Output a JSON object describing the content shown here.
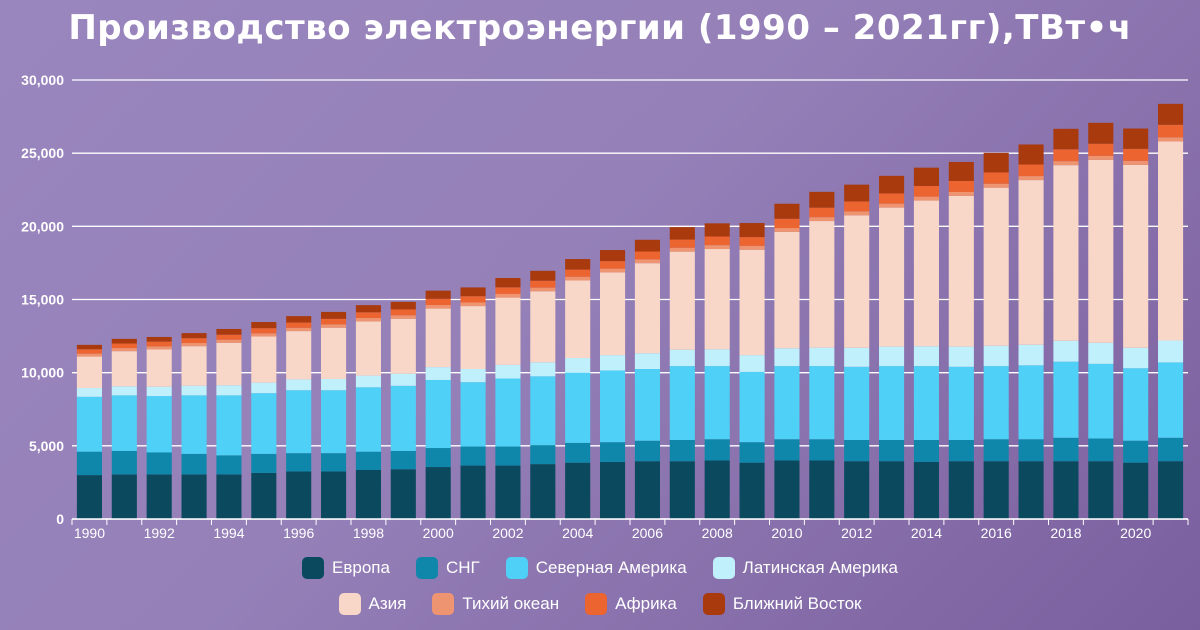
{
  "title": "Производство электроэнергии (1990 – 2021гг),ТВт•ч",
  "chart_data": {
    "type": "bar",
    "stacked": true,
    "title": "Производство электроэнергии (1990 – 2021гг),ТВт•ч",
    "xlabel": "",
    "ylabel": "",
    "ylim": [
      0,
      30000
    ],
    "yticks": [
      0,
      5000,
      10000,
      15000,
      20000,
      25000,
      30000
    ],
    "ytick_labels": [
      "0",
      "5,000",
      "10,000",
      "15,000",
      "20,000",
      "25,000",
      "30,000"
    ],
    "x_tick_labels": [
      "1990",
      "1992",
      "1994",
      "1996",
      "1998",
      "2000",
      "2002",
      "2004",
      "2006",
      "2008",
      "2010",
      "2012",
      "2014",
      "2016",
      "2018",
      "2020"
    ],
    "grid": true,
    "legend_position": "bottom",
    "categories": [
      "1990",
      "1991",
      "1992",
      "1993",
      "1994",
      "1995",
      "1996",
      "1997",
      "1998",
      "1999",
      "2000",
      "2001",
      "2002",
      "2003",
      "2004",
      "2005",
      "2006",
      "2007",
      "2008",
      "2009",
      "2010",
      "2011",
      "2012",
      "2013",
      "2014",
      "2015",
      "2016",
      "2017",
      "2018",
      "2019",
      "2020",
      "2021"
    ],
    "series": [
      {
        "name": "Европа",
        "color": "#0b4a5e",
        "values": [
          3000,
          3050,
          3050,
          3050,
          3050,
          3150,
          3250,
          3250,
          3350,
          3400,
          3550,
          3650,
          3650,
          3750,
          3850,
          3900,
          3950,
          3950,
          4000,
          3850,
          4000,
          4000,
          3950,
          3950,
          3900,
          3950,
          3950,
          3950,
          3950,
          3950,
          3850,
          3950
        ]
      },
      {
        "name": "СНГ",
        "color": "#0f87aa",
        "values": [
          1600,
          1600,
          1500,
          1400,
          1300,
          1300,
          1250,
          1250,
          1250,
          1250,
          1300,
          1300,
          1300,
          1300,
          1350,
          1350,
          1400,
          1450,
          1450,
          1400,
          1450,
          1450,
          1450,
          1450,
          1500,
          1450,
          1500,
          1500,
          1600,
          1550,
          1500,
          1600
        ]
      },
      {
        "name": "Северная Америка",
        "color": "#4fd0f7",
        "values": [
          3750,
          3800,
          3850,
          4000,
          4100,
          4150,
          4300,
          4300,
          4400,
          4450,
          4650,
          4400,
          4650,
          4700,
          4800,
          4900,
          4900,
          5050,
          5000,
          4800,
          5000,
          5000,
          5000,
          5050,
          5050,
          5000,
          5000,
          5050,
          5200,
          5100,
          4950,
          5150
        ]
      },
      {
        "name": "Латинская Америка",
        "color": "#bff0fc",
        "values": [
          600,
          620,
          640,
          660,
          690,
          720,
          740,
          770,
          800,
          830,
          880,
          900,
          930,
          960,
          1000,
          1050,
          1080,
          1120,
          1150,
          1150,
          1220,
          1260,
          1300,
          1330,
          1360,
          1380,
          1390,
          1410,
          1430,
          1440,
          1400,
          1500
        ]
      },
      {
        "name": "Азия",
        "color": "#f8d6c8",
        "values": [
          2150,
          2400,
          2550,
          2700,
          2900,
          3150,
          3300,
          3500,
          3700,
          3750,
          4000,
          4300,
          4600,
          4850,
          5300,
          5650,
          6150,
          6700,
          6850,
          7200,
          7950,
          8650,
          9050,
          9500,
          9950,
          10300,
          10800,
          11250,
          12000,
          12500,
          12500,
          13600
        ]
      },
      {
        "name": "Тихий океан",
        "color": "#ee9470",
        "values": [
          200,
          210,
          210,
          215,
          215,
          220,
          225,
          230,
          235,
          240,
          245,
          245,
          250,
          250,
          255,
          260,
          260,
          265,
          265,
          265,
          265,
          265,
          270,
          270,
          270,
          270,
          270,
          275,
          275,
          275,
          275,
          280
        ]
      },
      {
        "name": "Африка",
        "color": "#ec6430",
        "values": [
          300,
          310,
          320,
          330,
          340,
          350,
          360,
          380,
          390,
          400,
          420,
          430,
          450,
          470,
          490,
          510,
          540,
          560,
          590,
          600,
          630,
          650,
          680,
          700,
          730,
          750,
          770,
          790,
          810,
          830,
          820,
          860
        ]
      },
      {
        "name": "Ближний Восток",
        "color": "#a83a0e",
        "values": [
          300,
          320,
          320,
          350,
          390,
          420,
          440,
          470,
          490,
          520,
          560,
          600,
          640,
          680,
          720,
          760,
          800,
          850,
          900,
          960,
          1030,
          1080,
          1150,
          1200,
          1250,
          1300,
          1340,
          1370,
          1400,
          1430,
          1390,
          1430
        ]
      }
    ]
  }
}
